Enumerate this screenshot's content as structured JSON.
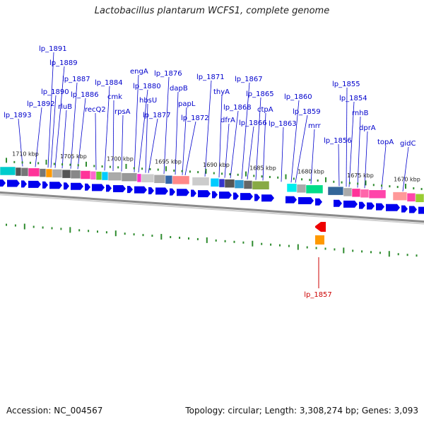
{
  "title": "Lactobacillus plantarum WCFS1, complete genome",
  "accession": "Accession: NC_004567",
  "summary": "Topology: circular; Length: 3,308,274 bp; Genes: 3,093",
  "scale_ticks": [
    "1710 kbp",
    "1705 kbp",
    "1700 kbp",
    "1695 kbp",
    "1690 kbp",
    "1685 kbp",
    "1680 kbp",
    "1675 kbp",
    "1670 kbp"
  ],
  "gene_labels": [
    "lp_1893",
    "lp_1892",
    "lp_1891",
    "lp_1890",
    "lp_1889",
    "rluB",
    "lp_1887",
    "lp_1886",
    "recQ2",
    "lp_1884",
    "cmk",
    "rpsA",
    "engA",
    "lp_1880",
    "hbsU",
    "lp_1877",
    "lp_1876",
    "dapB",
    "papL",
    "lp_1872",
    "lp_1871",
    "thyA",
    "dfrA",
    "lp_1868",
    "lp_1867",
    "lp_1866",
    "lp_1865",
    "ctpA",
    "lp_1863",
    "lp_1860",
    "lp_1859",
    "mrr",
    "lp_1856",
    "lp_1855",
    "lp_1854",
    "rnhB",
    "dprA",
    "topA",
    "gidC"
  ],
  "highlight_label": "lp_1857",
  "colors": {
    "gene_arrow": "#0000ee",
    "label": "#0000cc",
    "highlight": "#cc0000",
    "tick": "#2e8b2e",
    "backbone": "#8a8a8a"
  }
}
